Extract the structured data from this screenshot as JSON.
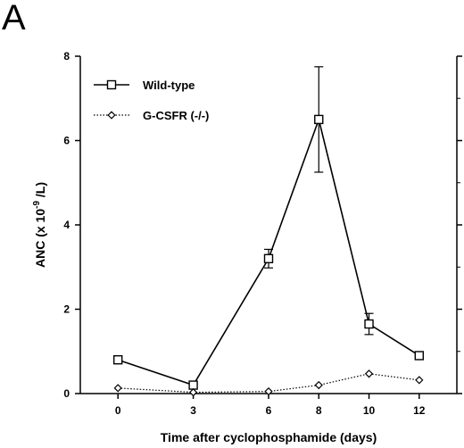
{
  "panel_label": "A",
  "chart_data": {
    "type": "line",
    "title": "",
    "xlabel": "Time after cyclophosphamide (days)",
    "ylabel_prefix": "ANC (x 10",
    "ylabel_exp": "-9",
    "ylabel_suffix": " /L)",
    "x": [
      0,
      3,
      6,
      8,
      10,
      12
    ],
    "xticks": [
      "0",
      "3",
      "6",
      "8",
      "10",
      "12"
    ],
    "xlim": [
      -1.5,
      13.5
    ],
    "ylim": [
      0,
      8
    ],
    "yticks": [
      "0",
      "2",
      "4",
      "6",
      "8"
    ],
    "ytick_values": [
      0,
      2,
      4,
      6,
      8
    ],
    "legend_position": "top-left",
    "grid": false,
    "series": [
      {
        "name": "Wild-type",
        "values": [
          0.8,
          0.2,
          3.2,
          6.5,
          1.65,
          0.9
        ],
        "error": [
          0,
          0,
          0.22,
          1.25,
          0.25,
          0
        ],
        "marker": "square",
        "line_style": "solid",
        "color": "#000000"
      },
      {
        "name": "G-CSFR (-/-)",
        "values": [
          0.13,
          0.03,
          0.05,
          0.2,
          0.47,
          0.32
        ],
        "error": [
          0,
          0,
          0,
          0,
          0,
          0
        ],
        "marker": "diamond",
        "line_style": "dotted",
        "color": "#000000"
      }
    ]
  }
}
